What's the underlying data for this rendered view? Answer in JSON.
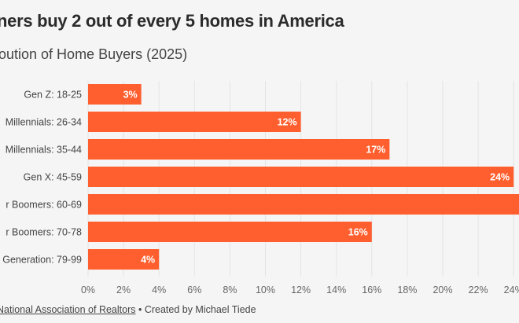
{
  "chart_data": {
    "type": "bar",
    "orientation": "horizontal",
    "title": "ners buy 2 out of every 5 homes in America",
    "subtitle": "oution of Home Buyers (2025)",
    "categories": [
      "Gen Z: 18-25",
      "Millennials: 26-34",
      "Millennials: 35-44",
      "Gen X: 45-59",
      "r Boomers: 60-69",
      "r Boomers: 70-78",
      "Generation: 79-99"
    ],
    "values": [
      3,
      12,
      17,
      24,
      25,
      16,
      4
    ],
    "data_labels": [
      "3%",
      "12%",
      "17%",
      "24%",
      null,
      "16%",
      "4%"
    ],
    "xlim": [
      0,
      24
    ],
    "xticks": [
      "0%",
      "2%",
      "4%",
      "6%",
      "8%",
      "10%",
      "12%",
      "14%",
      "16%",
      "18%",
      "20%",
      "22%",
      "24%"
    ],
    "grid": "vertical",
    "bar_color": "#ff5f2e",
    "label_color": "#ffffff"
  },
  "footer": {
    "source_link": "National Association of Realtors",
    "separator": " • ",
    "credit": "Created by Michael Tiede"
  }
}
